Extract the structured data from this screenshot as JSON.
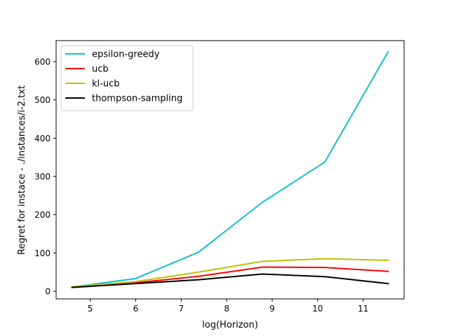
{
  "chart_data": {
    "type": "line",
    "title": "",
    "xlabel": "log(Horizon)",
    "ylabel": "Regret for instace - ./instances/i-2.txt",
    "xlim": [
      4.25,
      11.9
    ],
    "ylim": [
      -20,
      655
    ],
    "xticks": [
      5,
      6,
      7,
      8,
      9,
      10,
      11
    ],
    "yticks": [
      0,
      100,
      200,
      300,
      400,
      500,
      600
    ],
    "grid": false,
    "legend_position": "top-left",
    "x": [
      4.6,
      5.99,
      7.38,
      8.78,
      10.16,
      11.55
    ],
    "series": [
      {
        "name": "epsilon-greedy",
        "color": "#17becf",
        "values": [
          11,
          33,
          102,
          232,
          338,
          626
        ]
      },
      {
        "name": "ucb",
        "color": "#ff0000",
        "values": [
          10,
          22,
          39,
          63,
          62,
          52
        ]
      },
      {
        "name": "kl-ucb",
        "color": "#bfbf00",
        "values": [
          12,
          25,
          50,
          78,
          85,
          81
        ]
      },
      {
        "name": "thompson-sampling",
        "color": "#000000",
        "values": [
          10,
          20,
          30,
          45,
          38,
          20
        ]
      }
    ]
  }
}
